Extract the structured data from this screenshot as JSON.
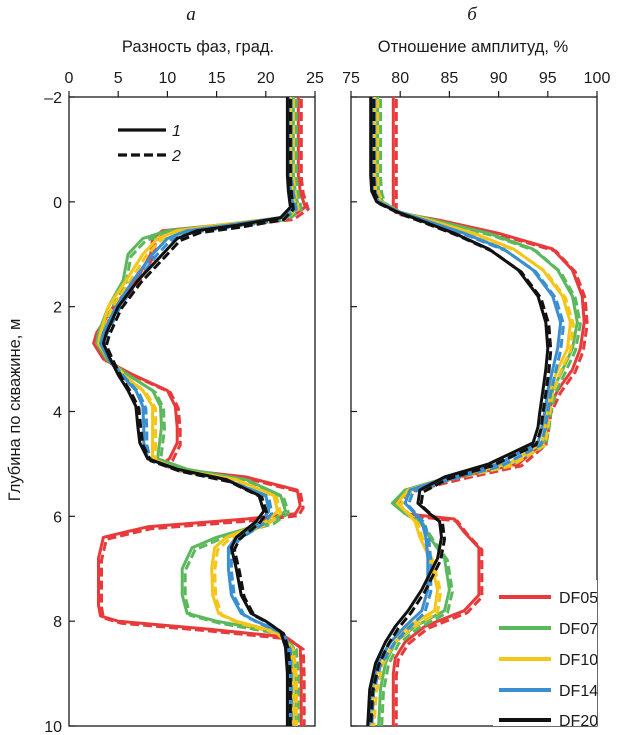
{
  "chart_data": [
    {
      "panel": "a",
      "type": "line",
      "xlabel": "Разность фаз, град.",
      "ylabel": "Глубина по скважине, м",
      "xlim": [
        0,
        25
      ],
      "ylim": [
        -2,
        10
      ],
      "y_inverted": true,
      "x_axis_position": "top",
      "xticks": [
        0,
        5,
        10,
        15,
        20,
        25
      ],
      "yticks": [
        -2,
        0,
        2,
        4,
        6,
        8,
        10
      ],
      "ytick_labels": [
        "–2",
        "0",
        "2",
        "4",
        "6",
        "8",
        "10"
      ],
      "legend_styles": [
        {
          "label": "1",
          "style": "solid"
        },
        {
          "label": "2",
          "style": "dashed"
        }
      ],
      "series": [
        {
          "name": "DF05",
          "color": "#e83a3a",
          "x": [
            23.3,
            23.3,
            23.5,
            24.0,
            22.5,
            15,
            9.5,
            8.5,
            8.3,
            6.8,
            4.5,
            2.8,
            2.5,
            3.5,
            6.5,
            10.0,
            10.8,
            11.0,
            11.0,
            10.2,
            9.5,
            11,
            18,
            23.2,
            23.5,
            23.0,
            18,
            8,
            3.5,
            3.0,
            3.0,
            3.0,
            3.2,
            5,
            14,
            22,
            23.5,
            23.6,
            23.6
          ],
          "y": [
            -2,
            -0.5,
            -0.2,
            0.1,
            0.3,
            0.45,
            0.55,
            0.7,
            1.0,
            1.5,
            2.0,
            2.5,
            2.7,
            3.0,
            3.3,
            3.6,
            3.9,
            4.3,
            4.6,
            4.9,
            5.0,
            5.1,
            5.25,
            5.5,
            5.8,
            5.95,
            6.05,
            6.2,
            6.4,
            6.8,
            7.3,
            7.7,
            7.9,
            8.0,
            8.15,
            8.3,
            8.5,
            9.0,
            10.0
          ]
        },
        {
          "name": "DF07",
          "color": "#5cb85c",
          "x": [
            22.8,
            22.8,
            23.0,
            23.3,
            22.0,
            15,
            10.0,
            7.5,
            6.0,
            5.5,
            4.0,
            3.0,
            2.8,
            3.8,
            6.0,
            8.5,
            9.3,
            9.4,
            9.2,
            9.0,
            12,
            18,
            21.5,
            22.0,
            20.5,
            15,
            12.5,
            11.5,
            11.5,
            12,
            15,
            21,
            22.8,
            23.0,
            23.0
          ],
          "y": [
            -2,
            -0.5,
            -0.2,
            0.1,
            0.3,
            0.45,
            0.55,
            0.7,
            1.0,
            1.5,
            2.0,
            2.5,
            2.7,
            3.0,
            3.3,
            3.6,
            3.9,
            4.3,
            4.6,
            4.9,
            5.1,
            5.3,
            5.6,
            5.9,
            6.1,
            6.4,
            6.6,
            7.0,
            7.5,
            7.85,
            8.0,
            8.2,
            8.5,
            9.0,
            10.0
          ]
        },
        {
          "name": "DF10",
          "color": "#f5c518",
          "x": [
            22.5,
            22.5,
            22.7,
            23.0,
            21.5,
            15,
            11.0,
            9.0,
            7.5,
            5.8,
            4.0,
            3.2,
            3.0,
            4.0,
            5.5,
            7.5,
            8.5,
            8.5,
            8.5,
            8.5,
            11,
            17,
            20.8,
            21.2,
            20.0,
            16,
            14.8,
            14.5,
            14.6,
            15.2,
            17,
            21,
            22.5,
            22.8,
            22.8
          ],
          "y": [
            -2,
            -0.5,
            -0.2,
            0.1,
            0.3,
            0.45,
            0.55,
            0.7,
            1.0,
            1.5,
            2.0,
            2.5,
            2.7,
            3.0,
            3.3,
            3.6,
            3.9,
            4.3,
            4.6,
            4.9,
            5.1,
            5.3,
            5.6,
            5.9,
            6.1,
            6.4,
            6.6,
            7.0,
            7.5,
            7.85,
            8.0,
            8.2,
            8.5,
            9.0,
            10.0
          ]
        },
        {
          "name": "DF14",
          "color": "#3a8fd1",
          "x": [
            22.3,
            22.3,
            22.5,
            22.8,
            21.5,
            16,
            12.0,
            10.0,
            8.5,
            6.5,
            4.8,
            3.5,
            3.2,
            4.0,
            5.3,
            6.8,
            7.5,
            7.6,
            7.6,
            8.0,
            11,
            16,
            20.0,
            20.3,
            19.5,
            17.0,
            16.2,
            16.2,
            16.5,
            17.5,
            19,
            21.5,
            22.2,
            22.3,
            22.3
          ],
          "y": [
            -2,
            -0.5,
            -0.2,
            0.1,
            0.3,
            0.45,
            0.55,
            0.7,
            1.0,
            1.5,
            2.0,
            2.5,
            2.7,
            3.0,
            3.3,
            3.6,
            3.9,
            4.3,
            4.6,
            4.9,
            5.1,
            5.3,
            5.6,
            5.9,
            6.1,
            6.4,
            6.6,
            7.0,
            7.5,
            7.85,
            8.0,
            8.2,
            8.5,
            9.0,
            10.0
          ]
        },
        {
          "name": "DF20",
          "color": "#111111",
          "x": [
            22.2,
            22.2,
            22.3,
            22.5,
            21.5,
            17,
            13.0,
            11.0,
            9.5,
            7.0,
            5.0,
            3.8,
            3.5,
            4.2,
            5.0,
            6.0,
            6.8,
            7.0,
            7.2,
            8.0,
            11,
            16,
            19.3,
            19.8,
            19.0,
            17.0,
            16.5,
            17.0,
            17.5,
            18.5,
            20,
            21.5,
            22.0,
            22.2,
            22.2
          ],
          "y": [
            -2,
            -0.5,
            -0.2,
            0.1,
            0.3,
            0.45,
            0.55,
            0.7,
            1.0,
            1.5,
            2.0,
            2.5,
            2.7,
            3.0,
            3.3,
            3.6,
            3.9,
            4.3,
            4.6,
            4.9,
            5.1,
            5.3,
            5.6,
            5.9,
            6.1,
            6.4,
            6.6,
            7.0,
            7.5,
            7.85,
            8.0,
            8.2,
            8.5,
            9.0,
            10.0
          ]
        }
      ]
    },
    {
      "panel": "б",
      "type": "line",
      "xlabel": "Отношение амплитуд, %",
      "ylabel": "",
      "xlim": [
        75,
        100
      ],
      "ylim": [
        -2,
        10
      ],
      "y_inverted": true,
      "x_axis_position": "top",
      "xticks": [
        75,
        80,
        85,
        90,
        95,
        100
      ],
      "yticks": [
        -2,
        0,
        2,
        4,
        6,
        8,
        10
      ],
      "legend": [
        "DF05",
        "DF07",
        "DF10",
        "DF14",
        "DF20"
      ],
      "legend_position": "bottom-right",
      "series": [
        {
          "name": "DF05",
          "color": "#e83a3a",
          "x": [
            79.3,
            79.3,
            79.3,
            79.3,
            79.5,
            84,
            90,
            95.5,
            97.5,
            98.5,
            98.7,
            98.3,
            97.5,
            96.0,
            95.0,
            94.8,
            94.5,
            92,
            86,
            80.5,
            79.5,
            80.5,
            85.5,
            86.5,
            88.0,
            88.0,
            86.5,
            82.5,
            80.5,
            79.5,
            79.3,
            79.3
          ],
          "y": [
            -2,
            -0.5,
            0.0,
            0.1,
            0.2,
            0.35,
            0.6,
            0.9,
            1.3,
            1.8,
            2.3,
            2.8,
            3.2,
            3.6,
            4.0,
            4.3,
            4.6,
            5.0,
            5.25,
            5.5,
            5.75,
            5.95,
            6.05,
            6.3,
            6.6,
            7.5,
            7.8,
            8.1,
            8.4,
            8.7,
            9.0,
            10.0
          ]
        },
        {
          "name": "DF07",
          "color": "#5cb85c",
          "x": [
            77.7,
            77.7,
            77.8,
            78.2,
            80.0,
            83.5,
            89,
            93.5,
            96.0,
            97.5,
            98.0,
            97.5,
            96.5,
            95.5,
            95.0,
            94.8,
            94.5,
            91,
            85,
            80.5,
            79.2,
            80.5,
            82.0,
            83.0,
            84.5,
            85.0,
            84.5,
            81.5,
            79.5,
            78.5,
            78.0,
            77.8
          ],
          "y": [
            -2,
            -0.5,
            -0.2,
            0.0,
            0.2,
            0.35,
            0.6,
            0.9,
            1.3,
            1.8,
            2.3,
            2.8,
            3.2,
            3.6,
            4.0,
            4.3,
            4.6,
            5.0,
            5.25,
            5.5,
            5.75,
            5.95,
            6.1,
            6.4,
            6.8,
            7.4,
            7.8,
            8.1,
            8.4,
            8.8,
            9.3,
            10.0
          ]
        },
        {
          "name": "DF10",
          "color": "#f5c518",
          "x": [
            77.4,
            77.4,
            77.5,
            78.0,
            80.0,
            83,
            87.5,
            91.5,
            94.5,
            96.5,
            97.3,
            97.0,
            96.0,
            95.2,
            94.9,
            94.7,
            94.4,
            91,
            85,
            80.8,
            79.7,
            80.8,
            81.5,
            82.0,
            83.0,
            83.8,
            83.5,
            80.8,
            79.0,
            77.9,
            77.3,
            77.0
          ],
          "y": [
            -2,
            -0.5,
            -0.2,
            0.0,
            0.2,
            0.35,
            0.6,
            0.9,
            1.3,
            1.8,
            2.3,
            2.8,
            3.2,
            3.6,
            4.0,
            4.3,
            4.6,
            5.0,
            5.25,
            5.5,
            5.75,
            5.95,
            6.1,
            6.4,
            6.8,
            7.4,
            7.8,
            8.1,
            8.4,
            8.8,
            9.3,
            10.0
          ]
        },
        {
          "name": "DF14",
          "color": "#3a8fd1",
          "x": [
            77.1,
            77.1,
            77.2,
            77.8,
            80.0,
            82.5,
            86.5,
            90.5,
            93.5,
            95.5,
            96.3,
            96.0,
            95.5,
            95.0,
            94.7,
            94.4,
            94.0,
            90,
            85,
            81.0,
            80.5,
            81.5,
            82.2,
            82.6,
            82.8,
            82.8,
            82.2,
            80.5,
            79.0,
            77.7,
            77.0,
            76.8
          ],
          "y": [
            -2,
            -0.5,
            -0.2,
            0.0,
            0.2,
            0.35,
            0.6,
            0.9,
            1.3,
            1.8,
            2.3,
            2.8,
            3.2,
            3.6,
            4.0,
            4.3,
            4.6,
            5.0,
            5.25,
            5.5,
            5.75,
            5.95,
            6.1,
            6.4,
            6.8,
            7.4,
            7.8,
            8.1,
            8.4,
            8.8,
            9.3,
            10.0
          ]
        },
        {
          "name": "DF20",
          "color": "#111111",
          "x": [
            77.0,
            77.0,
            77.1,
            77.6,
            79.8,
            82.0,
            85.5,
            89.0,
            92.0,
            94.0,
            94.8,
            95.0,
            94.8,
            94.5,
            94.2,
            94.0,
            93.5,
            89,
            84.5,
            82.0,
            81.8,
            83.0,
            84.0,
            84.2,
            83.8,
            82.2,
            80.8,
            79.5,
            78.5,
            77.5,
            76.9,
            76.7
          ],
          "y": [
            -2,
            -0.5,
            -0.2,
            0.0,
            0.2,
            0.35,
            0.6,
            0.9,
            1.3,
            1.8,
            2.3,
            2.8,
            3.2,
            3.6,
            4.0,
            4.3,
            4.6,
            5.0,
            5.25,
            5.5,
            5.75,
            5.95,
            6.1,
            6.4,
            6.8,
            7.4,
            7.8,
            8.1,
            8.4,
            8.8,
            9.3,
            10.0
          ]
        }
      ]
    }
  ]
}
